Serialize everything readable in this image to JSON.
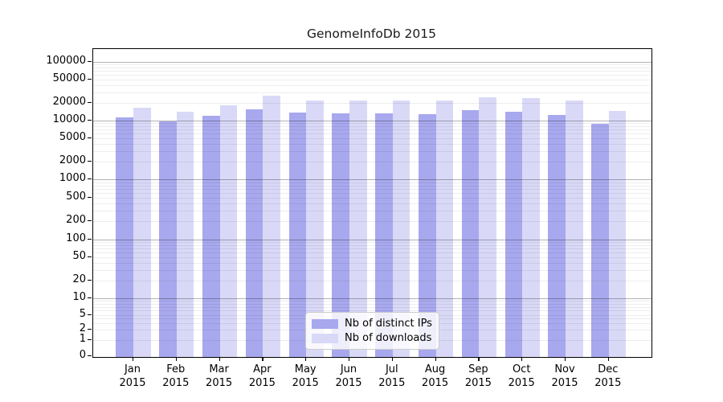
{
  "title": "GenomeInfoDb 2015",
  "chart_data": {
    "type": "bar",
    "title": "GenomeInfoDb 2015",
    "categories": [
      "Jan 2015",
      "Feb 2015",
      "Mar 2015",
      "Apr 2015",
      "May 2015",
      "Jun 2015",
      "Jul 2015",
      "Aug 2015",
      "Sep 2015",
      "Oct 2015",
      "Nov 2015",
      "Dec 2015"
    ],
    "x_tick_line1": [
      "Jan",
      "Feb",
      "Mar",
      "Apr",
      "May",
      "Jun",
      "Jul",
      "Aug",
      "Sep",
      "Oct",
      "Nov",
      "Dec"
    ],
    "x_tick_line2": [
      "2015",
      "2015",
      "2015",
      "2015",
      "2015",
      "2015",
      "2015",
      "2015",
      "2015",
      "2015",
      "2015",
      "2015"
    ],
    "series": [
      {
        "name": "Nb of distinct IPs",
        "color": "#a8a8ee",
        "values": [
          11300,
          9800,
          12000,
          15500,
          13700,
          13300,
          13200,
          12900,
          15000,
          14300,
          12300,
          8800
        ]
      },
      {
        "name": "Nb of downloads",
        "color": "#d9d9f7",
        "values": [
          16400,
          14300,
          18100,
          26700,
          21700,
          22100,
          21700,
          21700,
          24800,
          24000,
          21700,
          14700
        ]
      }
    ],
    "xlabel": "",
    "ylabel": "",
    "y_axis": {
      "scale": "symlog",
      "ticks": [
        0,
        1,
        2,
        5,
        10,
        20,
        50,
        100,
        200,
        500,
        1000,
        2000,
        5000,
        10000,
        20000,
        50000,
        100000
      ],
      "ylim": [
        0,
        160000
      ]
    },
    "grid": "horizontal",
    "legend_position": "lower center",
    "colors": {
      "distinct_ips": "#a8a8ee",
      "downloads": "#d9d9f7",
      "major_grid": "#b3b3b3",
      "minor_grid": "#ececec"
    }
  }
}
